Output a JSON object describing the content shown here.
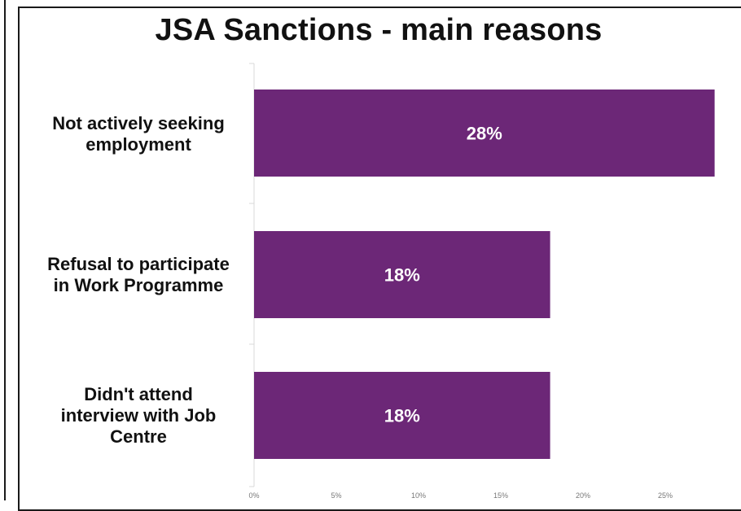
{
  "chart_data": {
    "type": "bar",
    "orientation": "horizontal",
    "title": "JSA Sanctions - main reasons",
    "categories": [
      "Not actively seeking employment",
      "Refusal to participate in Work Programme",
      "Didn't attend interview with Job Centre"
    ],
    "category_lines": [
      [
        "Not actively seeking",
        "employment"
      ],
      [
        "Refusal to participate",
        "in Work Programme"
      ],
      [
        "Didn't attend",
        "interview with Job",
        "Centre"
      ]
    ],
    "values": [
      28,
      18,
      18
    ],
    "data_labels": [
      "28%",
      "18%",
      "18%"
    ],
    "x_ticks": [
      0,
      5,
      10,
      15,
      20,
      25
    ],
    "x_tick_labels": [
      "0%",
      "5%",
      "10%",
      "15%",
      "20%",
      "25%"
    ],
    "xlim": [
      0,
      30
    ],
    "bar_color": "#6c2777",
    "grid": false
  }
}
